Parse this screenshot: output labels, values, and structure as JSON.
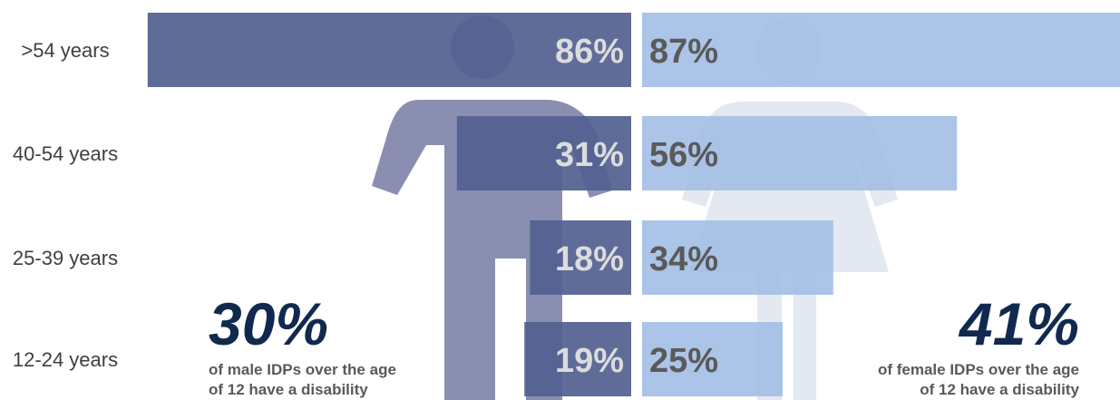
{
  "chart_data": {
    "type": "bar",
    "categories": [
      ">54 years",
      "40-54 years",
      "25-39 years",
      "12-24 years"
    ],
    "series": [
      {
        "values": [
          86,
          31,
          18,
          19
        ],
        "value_labels": [
          "86%",
          "31%",
          "18%",
          "19%"
        ]
      },
      {
        "values": [
          87,
          56,
          34,
          25
        ],
        "value_labels": [
          "87%",
          "56%",
          "34%",
          "25%"
        ]
      }
    ],
    "orientation": "horizontal-back-to-back",
    "xlim": [
      0,
      100
    ],
    "grid": false,
    "colors": {
      "male_bar": "#525f8f",
      "female_bar": "#a5c0e6",
      "male_icon": "#8a8fb2",
      "female_icon": "#e3e8f1",
      "male_label": "#dcdcdc",
      "female_label": "#5a5a5a",
      "stat": "#12294f"
    }
  },
  "callouts": {
    "male": {
      "value": "30%",
      "line1": "of male IDPs over the age",
      "line2": "of 12 have a disability"
    },
    "female": {
      "value": "41%",
      "line1": "of female IDPs over the age",
      "line2": "of 12 have a disability"
    }
  },
  "icons": {
    "male": "male-person-icon",
    "female": "female-person-icon"
  }
}
